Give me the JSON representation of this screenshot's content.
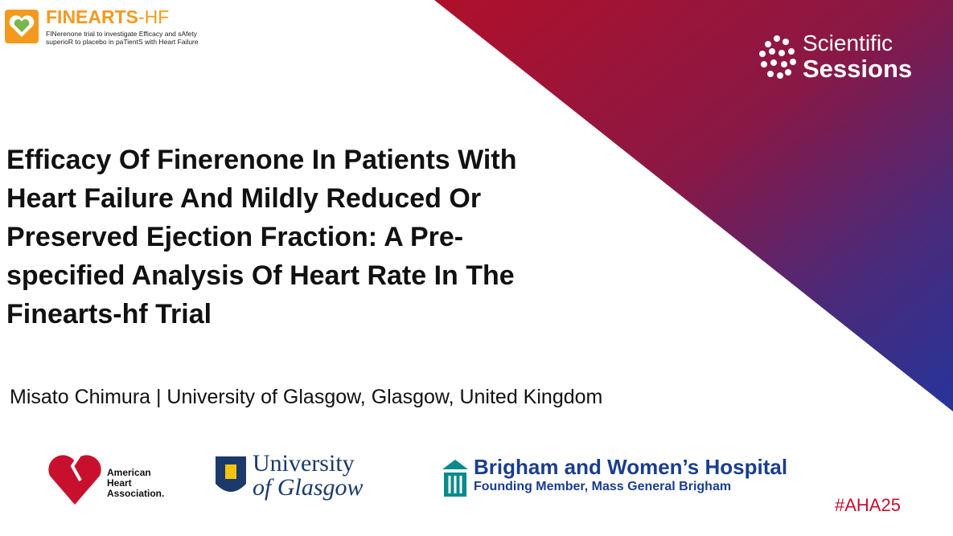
{
  "header": {
    "brand": "FINEARTS",
    "brand_suffix": "-HF",
    "brand_tagline": [
      "FINerenone trial to investigate Efficacy and sAfety",
      "superioR to placebo in paTientS with Heart Failure"
    ],
    "event": [
      "Scientific",
      "Sessions"
    ]
  },
  "title_lines": [
    "Efficacy Of Finerenone In Patients With",
    "Heart Failure And Mildly Reduced Or",
    "Preserved Ejection Fraction: A Pre-",
    "specified Analysis Of Heart Rate In The",
    "Finearts-hf Trial"
  ],
  "author": "Misato Chimura | University of Glasgow, Glasgow, United Kingdom",
  "logos": {
    "aha": [
      "American",
      "Heart",
      "Association."
    ],
    "glasgow": [
      "University",
      "of Glasgow"
    ],
    "brigham": [
      "Brigham and Women’s Hospital",
      "Founding Member, Mass General Brigham"
    ]
  },
  "hashtag": "#AHA25"
}
